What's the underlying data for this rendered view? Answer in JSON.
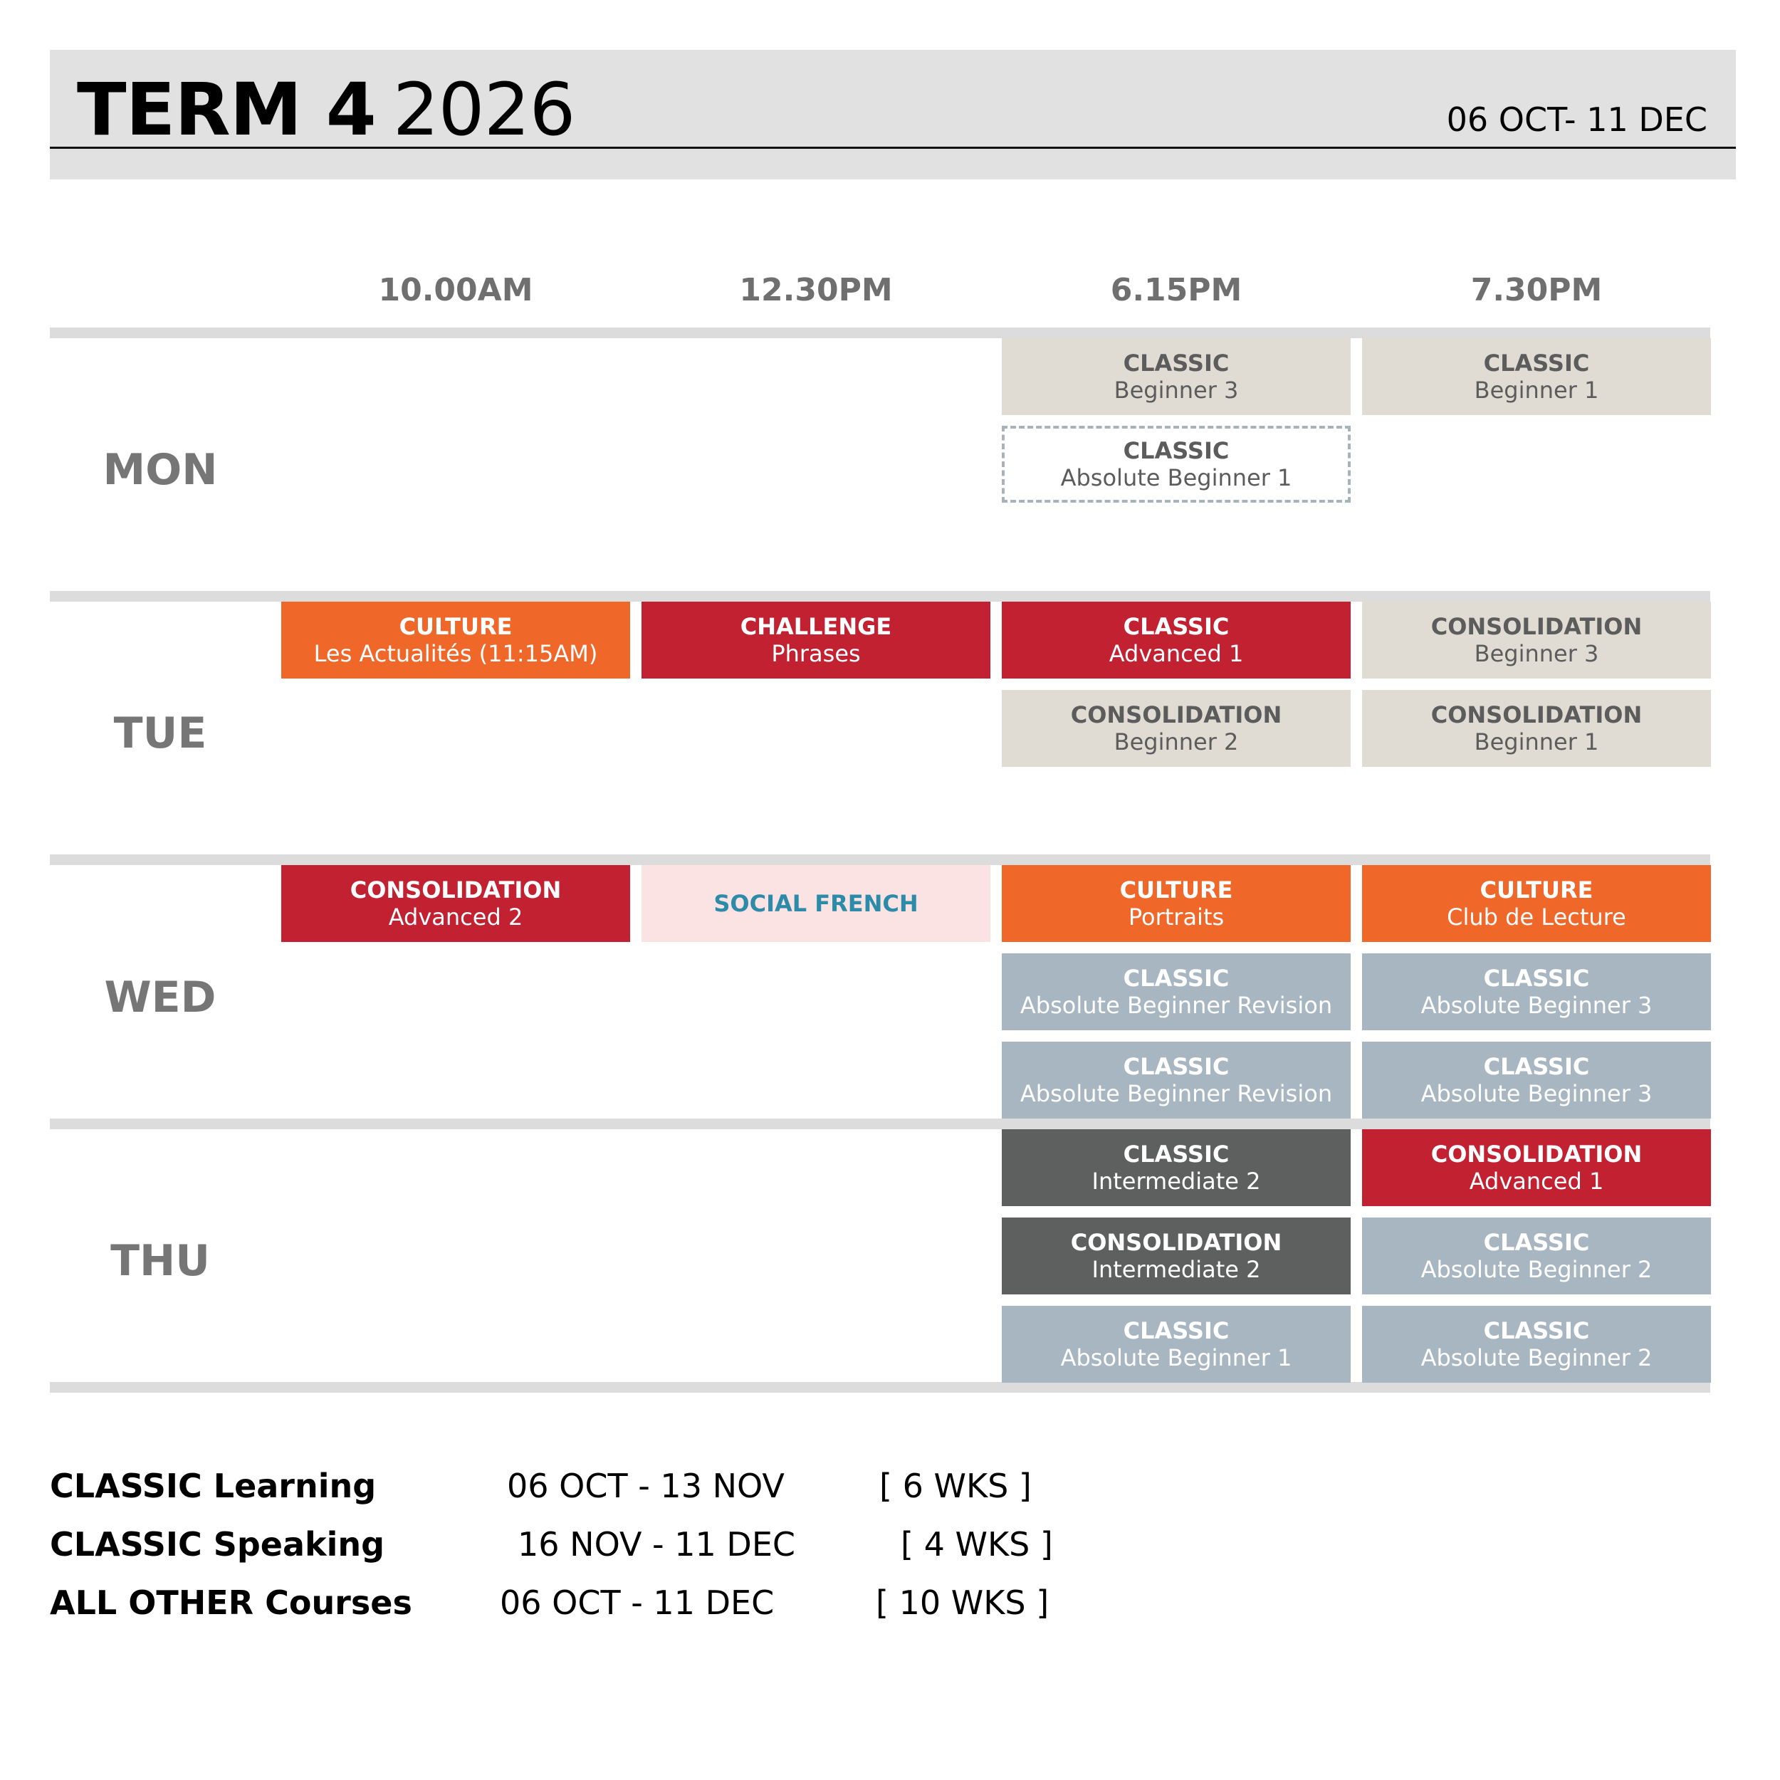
{
  "header": {
    "term_bold": "TERM 4",
    "year": "2026",
    "dates": "06 OCT-  11 DEC"
  },
  "times": [
    "10.00AM",
    "12.30PM",
    "6.15PM",
    "7.30PM"
  ],
  "days": [
    "MON",
    "TUE",
    "WED",
    "THU"
  ],
  "colors": {
    "beige": "#e0dcd3",
    "orange": "#f0672a",
    "red": "#c12131",
    "pink": "#fbe3e3",
    "blue_grey": "#a7b6c0",
    "dark_grey": "#5e5f5f"
  },
  "schedule": {
    "mon": [
      {
        "category": "CLASSIC",
        "level": "Beginner 3",
        "time": "6.15PM",
        "style": "beige"
      },
      {
        "category": "CLASSIC",
        "level": "Beginner 1",
        "time": "7.30PM",
        "style": "beige"
      },
      {
        "category": "CLASSIC",
        "level": "Absolute Beginner 1",
        "time": "6.15PM",
        "style": "dashed"
      }
    ],
    "tue": [
      {
        "category": "CULTURE",
        "level": "Les Actualités (11:15AM)",
        "time": "10.00AM",
        "style": "orange"
      },
      {
        "category": "CHALLENGE",
        "level": "Phrases",
        "time": "12.30PM",
        "style": "red"
      },
      {
        "category": "CLASSIC",
        "level": "Advanced 1",
        "time": "6.15PM",
        "style": "red"
      },
      {
        "category": "CONSOLIDATION",
        "level": "Beginner 3",
        "time": "7.30PM",
        "style": "beige"
      },
      {
        "category": "CONSOLIDATION",
        "level": "Beginner 2",
        "time": "6.15PM",
        "style": "beige"
      },
      {
        "category": "CONSOLIDATION",
        "level": "Beginner 1",
        "time": "7.30PM",
        "style": "beige"
      }
    ],
    "wed": [
      {
        "category": "CONSOLIDATION",
        "level": "Advanced 2",
        "time": "10.00AM",
        "style": "red"
      },
      {
        "category": "SOCIAL FRENCH",
        "level": "",
        "time": "12.30PM",
        "style": "pink"
      },
      {
        "category": "CULTURE",
        "level": "Portraits",
        "time": "6.15PM",
        "style": "orange"
      },
      {
        "category": "CULTURE",
        "level": "Club de Lecture",
        "time": "7.30PM",
        "style": "orange"
      },
      {
        "category": "CLASSIC",
        "level": "Absolute Beginner Revision",
        "time": "6.15PM",
        "style": "blue_grey"
      },
      {
        "category": "CLASSIC",
        "level": "Absolute Beginner 3",
        "time": "7.30PM",
        "style": "blue_grey"
      },
      {
        "category": "CLASSIC",
        "level": "Absolute Beginner Revision",
        "time": "6.15PM",
        "style": "blue_grey"
      },
      {
        "category": "CLASSIC",
        "level": "Absolute Beginner 3",
        "time": "7.30PM",
        "style": "blue_grey"
      }
    ],
    "thu": [
      {
        "category": "CLASSIC",
        "level": "Intermediate 2",
        "time": "6.15PM",
        "style": "dark_grey"
      },
      {
        "category": "CONSOLIDATION",
        "level": "Advanced 1",
        "time": "7.30PM",
        "style": "red"
      },
      {
        "category": "CONSOLIDATION",
        "level": "Intermediate 2",
        "time": "6.15PM",
        "style": "dark_grey"
      },
      {
        "category": "CLASSIC",
        "level": "Absolute Beginner 2",
        "time": "7.30PM",
        "style": "blue_grey"
      },
      {
        "category": "CLASSIC",
        "level": "Absolute Beginner 1",
        "time": "6.15PM",
        "style": "blue_grey"
      },
      {
        "category": "CLASSIC",
        "level": "Absolute Beginner 2",
        "time": "7.30PM",
        "style": "blue_grey"
      }
    ]
  },
  "legend": [
    {
      "name": "CLASSIC Learning",
      "dates": "06 OCT - 13 NOV",
      "weeks": "[ 6 WKS ]"
    },
    {
      "name": "CLASSIC Speaking",
      "dates": "16 NOV - 11 DEC",
      "weeks": "[ 4 WKS ]"
    },
    {
      "name": "ALL OTHER Courses",
      "dates": "06 OCT - 11 DEC",
      "weeks": "[ 10 WKS ]"
    }
  ]
}
